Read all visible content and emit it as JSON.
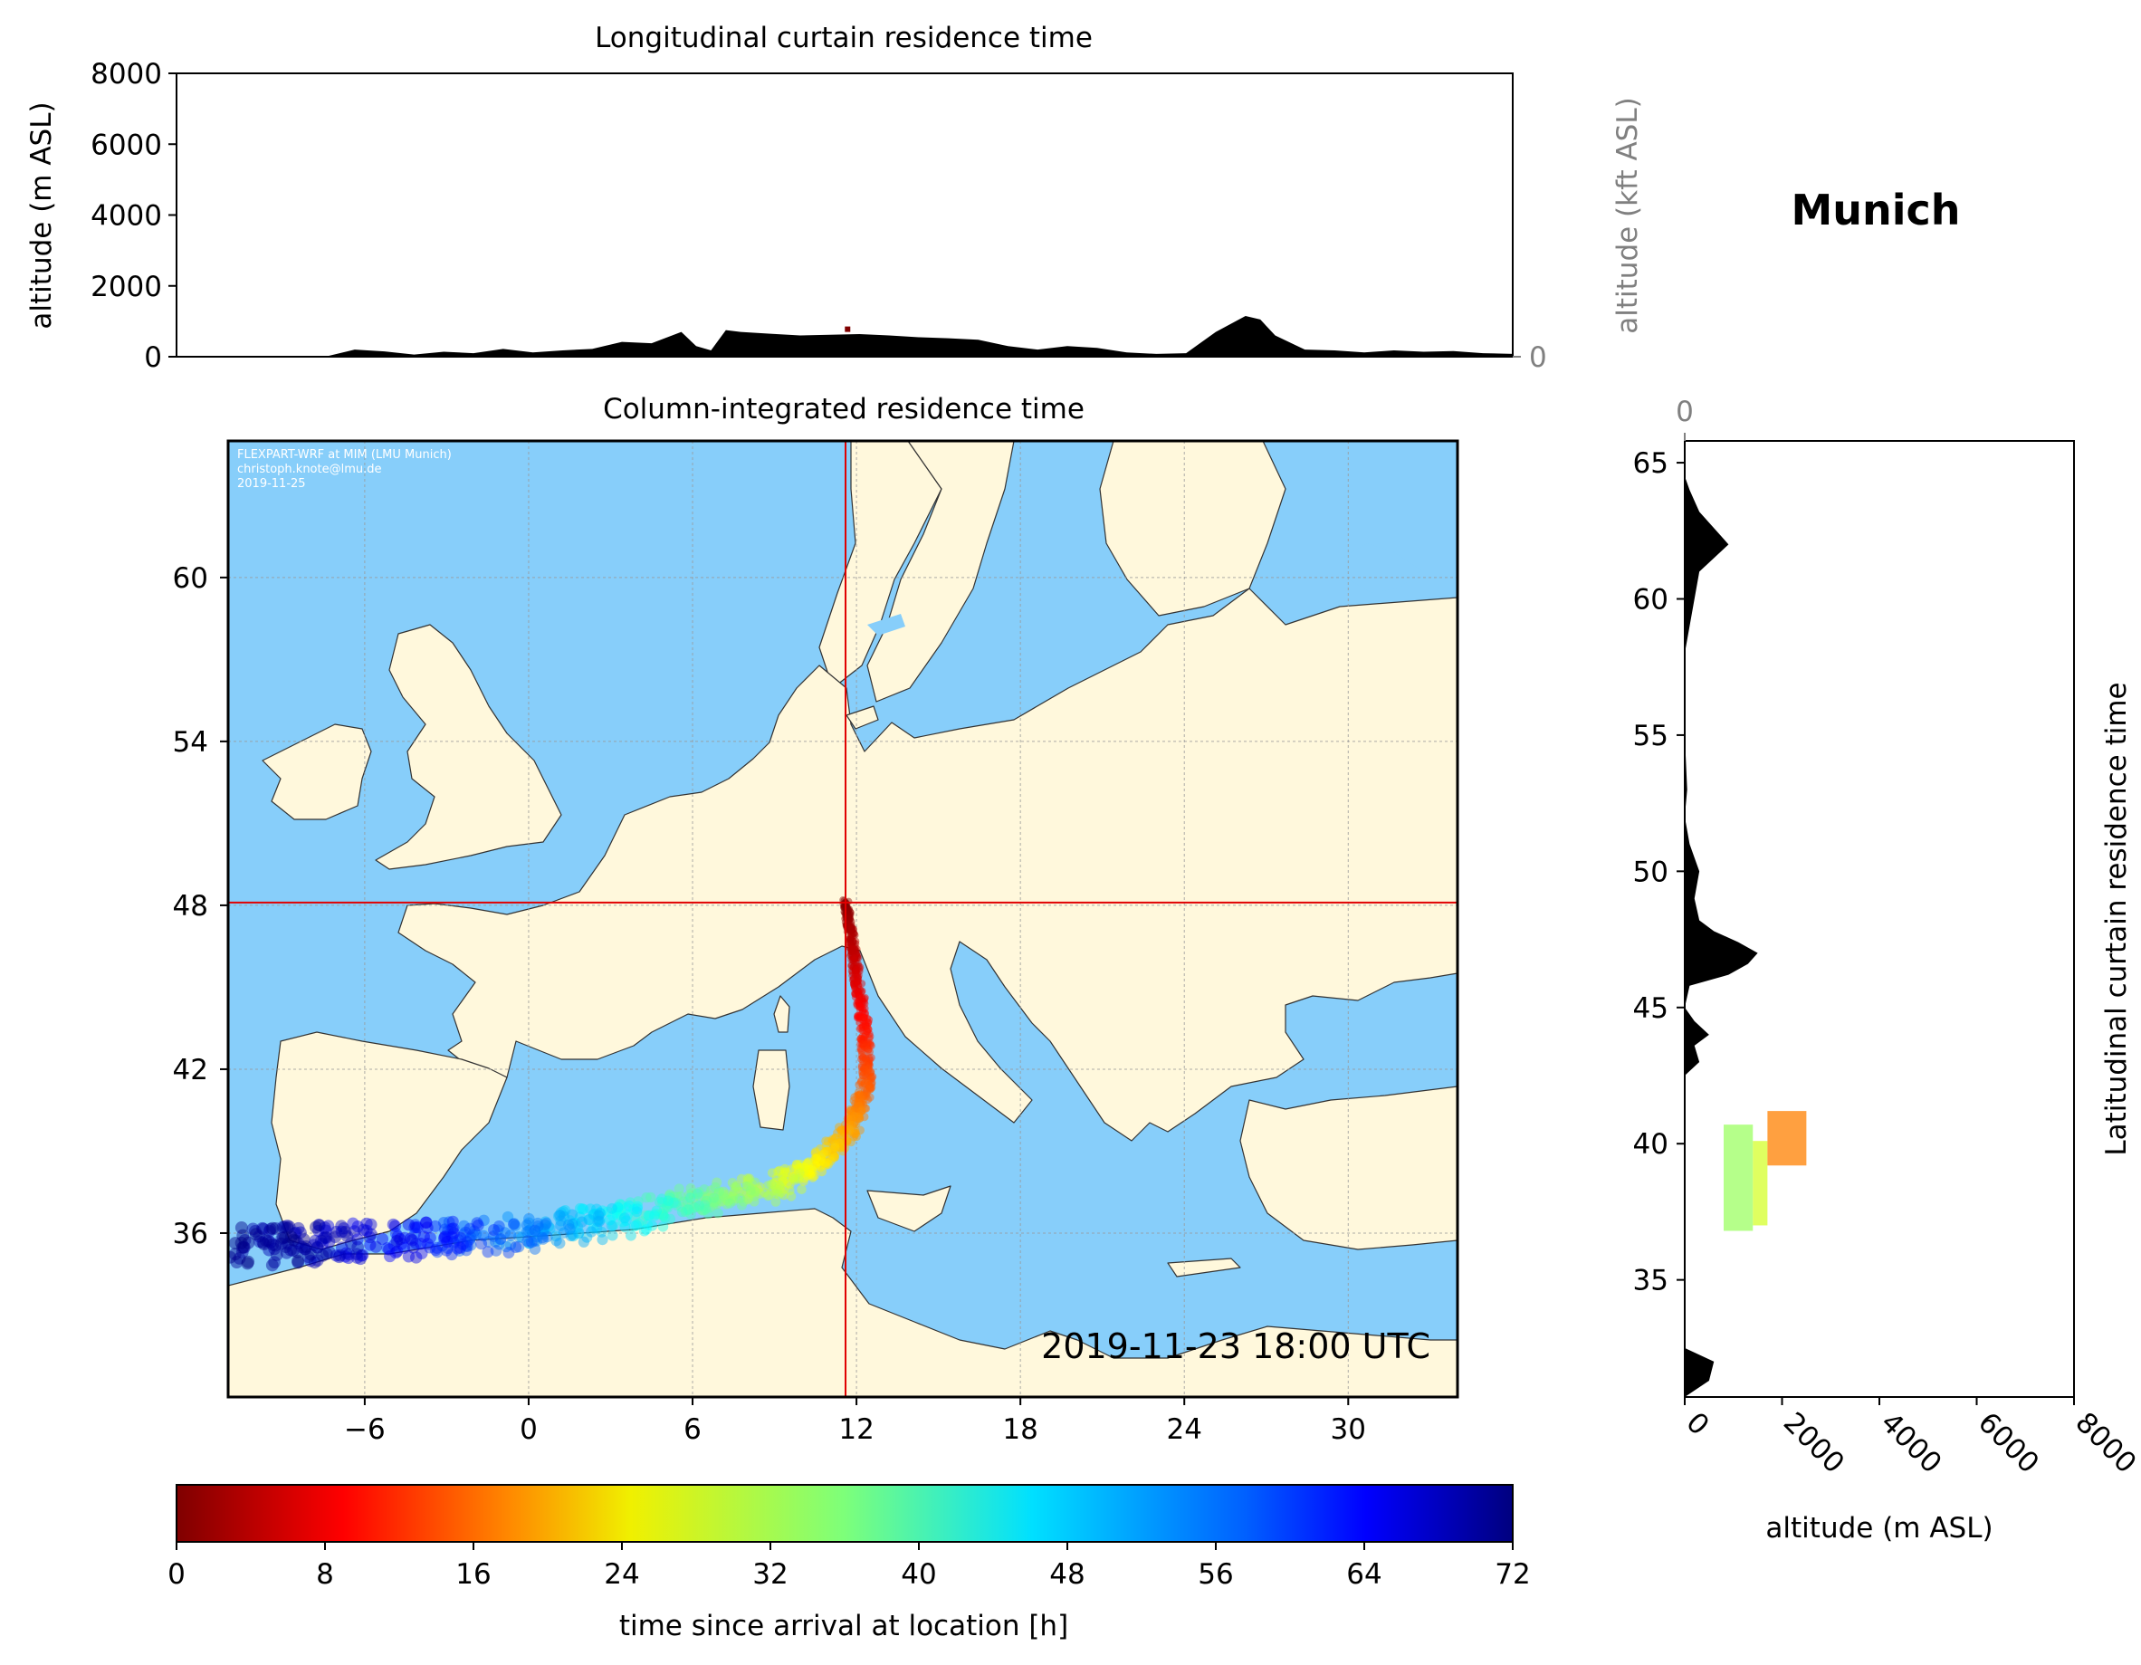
{
  "location_title": "Munich",
  "map_title": "Column-integrated residence time",
  "map_timestamp": "2019-11-23 18:00 UTC",
  "map_credit": [
    "FLEXPART-WRF at MIM (LMU Munich)",
    "christoph.knote@lmu.de",
    "2019-11-25"
  ],
  "colors": {
    "ocean": "#87cefa",
    "land": "#fff8dc",
    "crosshair": "#e00000",
    "terrain": "#000000",
    "grid": "#999999"
  },
  "chart_data": [
    {
      "type": "area",
      "title": "Longitudinal curtain residence time",
      "ylabel": "altitude (m ASL)",
      "ylabel_right": "altitude (kft ASL)",
      "ylim": [
        0,
        8000
      ],
      "yticks": [
        0,
        2000,
        4000,
        6000,
        8000
      ],
      "ylim_right": [
        0,
        100
      ],
      "yticks_right": [
        0,
        50,
        100
      ],
      "xlim": [
        -11,
        34
      ],
      "terrain_profile": {
        "x": [
          -11,
          -6,
          -5,
          -4,
          -3,
          -2,
          -1,
          0,
          1,
          2,
          3,
          4,
          5,
          6,
          6.5,
          7,
          7.5,
          8,
          9,
          10,
          11,
          12,
          13,
          14,
          15,
          16,
          17,
          18,
          19,
          20,
          21,
          22,
          23,
          24,
          25,
          25.5,
          26,
          27,
          28,
          29,
          30,
          31,
          32,
          33,
          34
        ],
        "y": [
          0,
          0,
          200,
          150,
          60,
          140,
          100,
          220,
          120,
          180,
          220,
          420,
          380,
          700,
          300,
          180,
          750,
          700,
          650,
          600,
          620,
          640,
          600,
          550,
          520,
          480,
          300,
          200,
          300,
          250,
          120,
          80,
          100,
          700,
          1150,
          1050,
          600,
          200,
          180,
          120,
          180,
          140,
          160,
          100,
          80
        ]
      },
      "particles": [
        {
          "x": 11.6,
          "y": 700,
          "age_h": 0
        }
      ]
    },
    {
      "type": "heatmap",
      "title": "Column-integrated residence time",
      "xlim": [
        -11,
        34
      ],
      "ylim": [
        30,
        65
      ],
      "xticks": [
        -6,
        0,
        6,
        12,
        18,
        24,
        30
      ],
      "yticks": [
        36,
        42,
        48,
        54,
        60
      ],
      "location": {
        "name": "Munich",
        "lon": 11.6,
        "lat": 48.1
      },
      "trajectory": [
        {
          "lon": 11.6,
          "lat": 48.1,
          "age_h": 0
        },
        {
          "lon": 11.8,
          "lat": 47.0,
          "age_h": 3
        },
        {
          "lon": 12.0,
          "lat": 45.5,
          "age_h": 6
        },
        {
          "lon": 12.3,
          "lat": 43.5,
          "age_h": 10
        },
        {
          "lon": 12.4,
          "lat": 41.5,
          "age_h": 15
        },
        {
          "lon": 11.8,
          "lat": 39.8,
          "age_h": 20
        },
        {
          "lon": 10.5,
          "lat": 38.5,
          "age_h": 26
        },
        {
          "lon": 8.5,
          "lat": 37.6,
          "age_h": 32
        },
        {
          "lon": 6.0,
          "lat": 37.2,
          "age_h": 38
        },
        {
          "lon": 3.0,
          "lat": 36.5,
          "age_h": 46
        },
        {
          "lon": 0.0,
          "lat": 36.0,
          "age_h": 54
        },
        {
          "lon": -4.0,
          "lat": 35.8,
          "age_h": 62
        },
        {
          "lon": -8.0,
          "lat": 35.6,
          "age_h": 68
        },
        {
          "lon": -10.5,
          "lat": 35.5,
          "age_h": 72
        }
      ]
    },
    {
      "type": "area",
      "title": "Latitudinal curtain residence time",
      "xlabel": "altitude (m ASL)",
      "xlim": [
        0,
        8000
      ],
      "xticks": [
        0,
        2000,
        4000,
        6000,
        8000
      ],
      "xlim_top": [
        0,
        100
      ],
      "xticks_top": [
        0,
        50,
        100
      ],
      "ylim": [
        30.7,
        65.8
      ],
      "yticks": [
        35,
        40,
        45,
        50,
        55,
        60,
        65
      ],
      "terrain_profile": {
        "lat": [
          30.7,
          31.3,
          32.0,
          32.5,
          34,
          36,
          38,
          40,
          42.5,
          43.0,
          43.6,
          44.0,
          44.5,
          45.0,
          45.8,
          46.2,
          46.6,
          47.0,
          47.4,
          47.8,
          48.2,
          49,
          50,
          51,
          52,
          53,
          55,
          57,
          58,
          59,
          60,
          61,
          61.5,
          62,
          62.4,
          62.8,
          63.2,
          63.6,
          64,
          64.5,
          65,
          65.8
        ],
        "alt": [
          0,
          500,
          600,
          0,
          0,
          0,
          0,
          0,
          0,
          300,
          200,
          500,
          200,
          0,
          100,
          900,
          1300,
          1500,
          1100,
          600,
          300,
          200,
          300,
          100,
          0,
          50,
          0,
          0,
          0,
          100,
          200,
          300,
          600,
          900,
          700,
          500,
          300,
          200,
          100,
          0,
          0,
          0
        ]
      },
      "particle_boxes": [
        {
          "alt_min": 800,
          "alt_max": 1400,
          "lat_min": 36.8,
          "lat_max": 40.7,
          "age_h": 34
        },
        {
          "alt_min": 1400,
          "alt_max": 1700,
          "lat_min": 37.0,
          "lat_max": 40.1,
          "age_h": 30
        },
        {
          "alt_min": 1700,
          "alt_max": 2500,
          "lat_min": 39.2,
          "lat_max": 41.2,
          "age_h": 18
        }
      ]
    }
  ],
  "colorbar": {
    "label": "time since arrival at location [h]",
    "min": 0,
    "max": 72,
    "ticks": [
      0,
      8,
      16,
      24,
      32,
      40,
      48,
      56,
      64,
      72
    ],
    "colormap": "jet_r"
  }
}
